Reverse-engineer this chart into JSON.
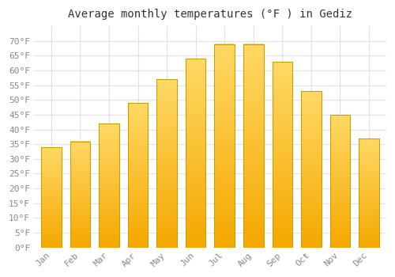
{
  "months": [
    "Jan",
    "Feb",
    "Mar",
    "Apr",
    "May",
    "Jun",
    "Jul",
    "Aug",
    "Sep",
    "Oct",
    "Nov",
    "Dec"
  ],
  "values": [
    34,
    36,
    42,
    49,
    57,
    64,
    69,
    69,
    63,
    53,
    45,
    37
  ],
  "bar_color_bottom": "#F5A800",
  "bar_color_top": "#FFD966",
  "bar_edge_color": "#C8A000",
  "title": "Average monthly temperatures (°F ) in Gediz",
  "ylim_min": 0,
  "ylim_max": 75,
  "yticks": [
    0,
    5,
    10,
    15,
    20,
    25,
    30,
    35,
    40,
    45,
    50,
    55,
    60,
    65,
    70
  ],
  "ytick_labels": [
    "0°F",
    "5°F",
    "10°F",
    "15°F",
    "20°F",
    "25°F",
    "30°F",
    "35°F",
    "40°F",
    "45°F",
    "50°F",
    "55°F",
    "60°F",
    "65°F",
    "70°F"
  ],
  "background_color": "#ffffff",
  "plot_bg_color": "#ffffff",
  "grid_color": "#e0e0e8",
  "title_fontsize": 10,
  "tick_fontsize": 8,
  "font_family": "monospace"
}
